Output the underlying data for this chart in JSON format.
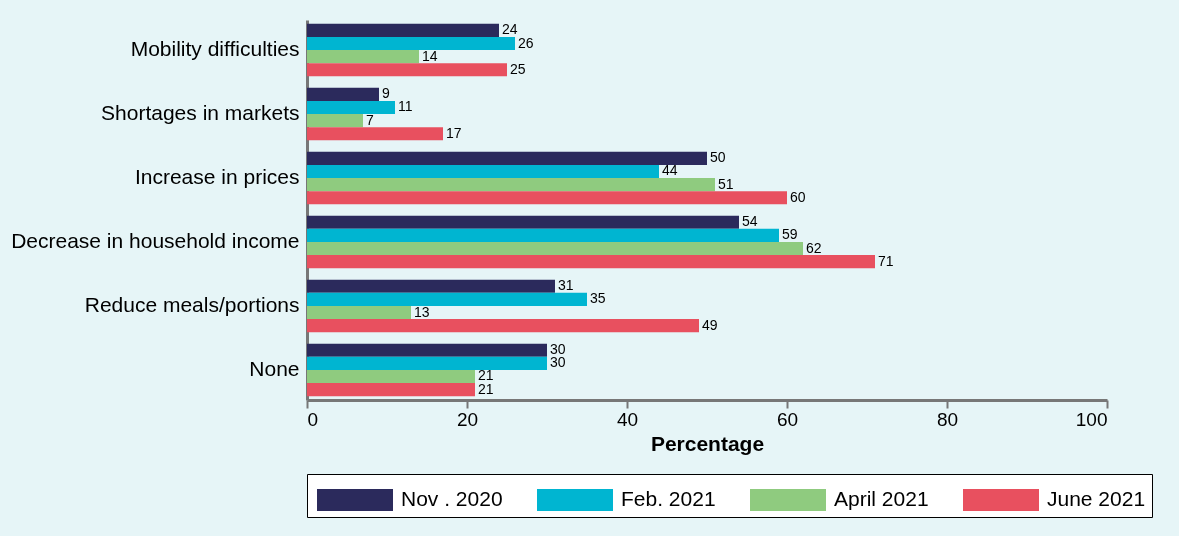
{
  "chart_data": {
    "type": "bar",
    "orientation": "horizontal",
    "xlabel": "Percentage",
    "categories": [
      "Mobility difficulties",
      "Shortages in markets",
      "Increase in prices",
      "Decrease in household income",
      "Reduce meals/portions",
      "None"
    ],
    "series": [
      {
        "name": "Nov . 2020",
        "color": "#2b2a5c",
        "values": [
          24,
          9,
          50,
          54,
          31,
          30
        ]
      },
      {
        "name": "Feb. 2021",
        "color": "#00b5d1",
        "values": [
          26,
          11,
          44,
          59,
          35,
          30
        ]
      },
      {
        "name": "April 2021",
        "color": "#8fcb7f",
        "values": [
          14,
          7,
          51,
          62,
          13,
          21
        ]
      },
      {
        "name": "June 2021",
        "color": "#e8505f",
        "values": [
          25,
          17,
          60,
          71,
          49,
          21
        ]
      }
    ],
    "xlim": [
      0,
      100
    ],
    "xticks": [
      0,
      20,
      40,
      60,
      80,
      100
    ],
    "data_labels": true,
    "legend": "bottom",
    "grid": false
  }
}
